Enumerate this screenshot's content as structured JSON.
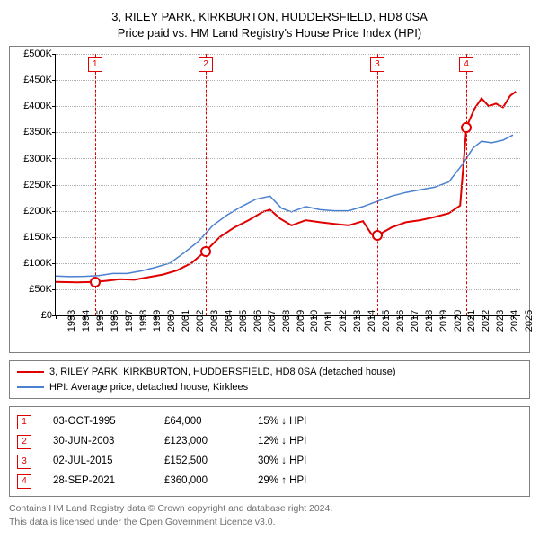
{
  "title": {
    "line1": "3, RILEY PARK, KIRKBURTON, HUDDERSFIELD, HD8 0SA",
    "line2": "Price paid vs. HM Land Registry's House Price Index (HPI)"
  },
  "chart": {
    "type": "line",
    "background_color": "#ffffff",
    "border_color": "#808080",
    "grid_color": "#b0b0b0",
    "axis_color": "#000000",
    "label_fontsize": 11,
    "x": {
      "min": 1993,
      "max": 2025.5,
      "ticks": [
        1993,
        1994,
        1995,
        1996,
        1997,
        1998,
        1999,
        2000,
        2001,
        2002,
        2003,
        2004,
        2005,
        2006,
        2007,
        2008,
        2009,
        2010,
        2011,
        2012,
        2013,
        2014,
        2015,
        2016,
        2017,
        2018,
        2019,
        2020,
        2021,
        2022,
        2023,
        2024,
        2025
      ]
    },
    "y": {
      "min": 0,
      "max": 500000,
      "ticks": [
        0,
        50000,
        100000,
        150000,
        200000,
        250000,
        300000,
        350000,
        400000,
        450000,
        500000
      ],
      "tick_labels": [
        "£0",
        "£50K",
        "£100K",
        "£150K",
        "£200K",
        "£250K",
        "£300K",
        "£350K",
        "£400K",
        "£450K",
        "£500K"
      ]
    },
    "series": [
      {
        "id": "price_paid",
        "label": "3, RILEY PARK, KIRKBURTON, HUDDERSFIELD, HD8 0SA (detached house)",
        "color": "#e00000",
        "line_width": 2,
        "points": [
          [
            1993,
            64000
          ],
          [
            1994.5,
            63000
          ],
          [
            1995.75,
            64000
          ],
          [
            1996.5,
            66000
          ],
          [
            1997.5,
            69000
          ],
          [
            1998.5,
            68000
          ],
          [
            1999.5,
            73000
          ],
          [
            2000.5,
            78000
          ],
          [
            2001.5,
            86000
          ],
          [
            2002.5,
            100000
          ],
          [
            2003.5,
            123000
          ],
          [
            2004.5,
            150000
          ],
          [
            2005.5,
            168000
          ],
          [
            2006.5,
            182000
          ],
          [
            2007.5,
            198000
          ],
          [
            2008.0,
            202000
          ],
          [
            2008.7,
            185000
          ],
          [
            2009.5,
            172000
          ],
          [
            2010.5,
            182000
          ],
          [
            2011.5,
            178000
          ],
          [
            2012.5,
            175000
          ],
          [
            2013.5,
            172000
          ],
          [
            2014.5,
            180000
          ],
          [
            2015.1,
            155000
          ],
          [
            2015.5,
            152500
          ],
          [
            2016.5,
            168000
          ],
          [
            2017.5,
            178000
          ],
          [
            2018.5,
            182000
          ],
          [
            2019.5,
            188000
          ],
          [
            2020.5,
            195000
          ],
          [
            2021.3,
            210000
          ],
          [
            2021.74,
            360000
          ],
          [
            2022.3,
            395000
          ],
          [
            2022.8,
            415000
          ],
          [
            2023.3,
            400000
          ],
          [
            2023.8,
            405000
          ],
          [
            2024.3,
            398000
          ],
          [
            2024.8,
            420000
          ],
          [
            2025.2,
            428000
          ]
        ]
      },
      {
        "id": "hpi",
        "label": "HPI: Average price, detached house, Kirklees",
        "color": "#4a80d0",
        "line_width": 1.5,
        "points": [
          [
            1993,
            75000
          ],
          [
            1994,
            74000
          ],
          [
            1995,
            74500
          ],
          [
            1996,
            76000
          ],
          [
            1997,
            80000
          ],
          [
            1998,
            80000
          ],
          [
            1999,
            85000
          ],
          [
            2000,
            92000
          ],
          [
            2001,
            100000
          ],
          [
            2002,
            120000
          ],
          [
            2003,
            142000
          ],
          [
            2004,
            172000
          ],
          [
            2005,
            192000
          ],
          [
            2006,
            208000
          ],
          [
            2007,
            222000
          ],
          [
            2008,
            228000
          ],
          [
            2008.8,
            205000
          ],
          [
            2009.5,
            198000
          ],
          [
            2010.5,
            208000
          ],
          [
            2011.5,
            202000
          ],
          [
            2012.5,
            200000
          ],
          [
            2013.5,
            200000
          ],
          [
            2014.5,
            208000
          ],
          [
            2015.5,
            218000
          ],
          [
            2016.5,
            228000
          ],
          [
            2017.5,
            235000
          ],
          [
            2018.5,
            240000
          ],
          [
            2019.5,
            245000
          ],
          [
            2020.5,
            255000
          ],
          [
            2021.5,
            290000
          ],
          [
            2022.2,
            320000
          ],
          [
            2022.8,
            333000
          ],
          [
            2023.5,
            330000
          ],
          [
            2024.3,
            335000
          ],
          [
            2025.0,
            345000
          ]
        ]
      }
    ],
    "markers": [
      {
        "n": "1",
        "x": 1995.75,
        "y": 64000
      },
      {
        "n": "2",
        "x": 2003.5,
        "y": 123000
      },
      {
        "n": "3",
        "x": 2015.5,
        "y": 152500
      },
      {
        "n": "4",
        "x": 2021.74,
        "y": 360000
      }
    ],
    "marker_color": "#e00000"
  },
  "legend": {
    "items": [
      {
        "series": "price_paid"
      },
      {
        "series": "hpi"
      }
    ]
  },
  "transactions": {
    "marker_color": "#e00000",
    "rows": [
      {
        "n": "1",
        "date": "03-OCT-1995",
        "price": "£64,000",
        "diff": "15% ↓ HPI"
      },
      {
        "n": "2",
        "date": "30-JUN-2003",
        "price": "£123,000",
        "diff": "12% ↓ HPI"
      },
      {
        "n": "3",
        "date": "02-JUL-2015",
        "price": "£152,500",
        "diff": "30% ↓ HPI"
      },
      {
        "n": "4",
        "date": "28-SEP-2021",
        "price": "£360,000",
        "diff": "29% ↑ HPI"
      }
    ]
  },
  "footer": {
    "line1": "Contains HM Land Registry data © Crown copyright and database right 2024.",
    "line2": "This data is licensed under the Open Government Licence v3.0."
  }
}
